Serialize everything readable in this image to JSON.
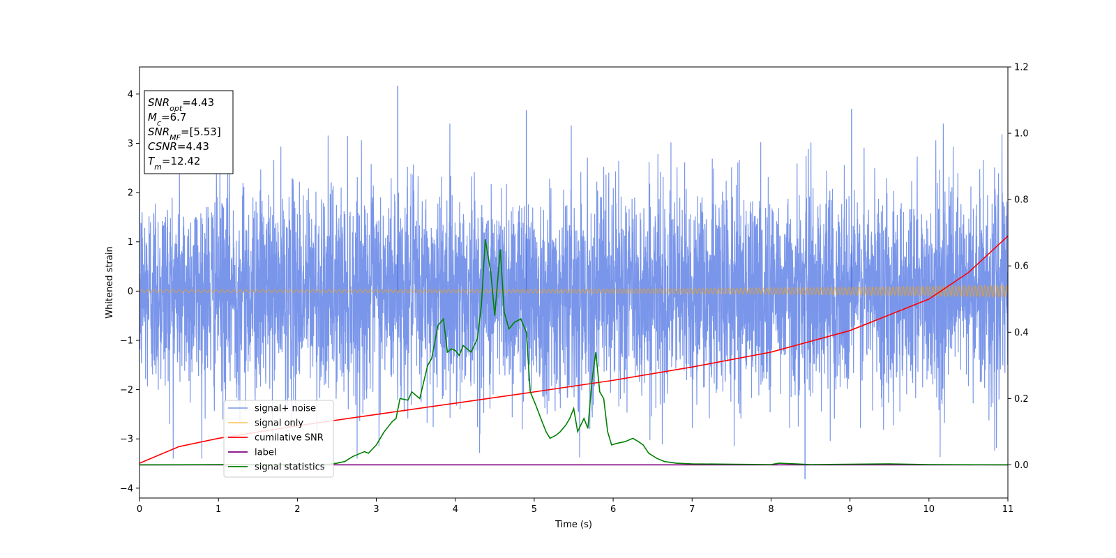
{
  "chart_data": {
    "type": "line",
    "xlabel": "Time (s)",
    "ylabel": "Whitened strain",
    "xlim": [
      0,
      11
    ],
    "ylim": [
      -4.2,
      4.55
    ],
    "y2lim": [
      -0.1,
      1.2
    ],
    "x_ticks": [
      "0",
      "1",
      "2",
      "3",
      "4",
      "5",
      "6",
      "7",
      "8",
      "9",
      "10",
      "11"
    ],
    "y_ticks": [
      "−4",
      "−3",
      "−2",
      "−1",
      "0",
      "1",
      "2",
      "3",
      "4"
    ],
    "y2_ticks": [
      "0.0",
      "0.2",
      "0.4",
      "0.6",
      "0.8",
      "1.0",
      "1.2"
    ],
    "grid": false,
    "legend_position": "lower-left",
    "legend": [
      {
        "label": "signal+ noise",
        "color": "#4169e1"
      },
      {
        "label": "signal only",
        "color": "#ffa500"
      },
      {
        "label": "cumilative SNR",
        "color": "#ff0000"
      },
      {
        "label": "label",
        "color": "#800080"
      },
      {
        "label": "signal statistics",
        "color": "#008000"
      }
    ],
    "info_box": [
      {
        "sym": "SNR",
        "sub": "opt",
        "val": "=4.43"
      },
      {
        "sym": "M",
        "sub": "c",
        "val": "=6.7"
      },
      {
        "sym": "SNR",
        "sub": "MF",
        "val": "=[5.53]"
      },
      {
        "sym": "CSNR",
        "sub": "",
        "val": "=4.43"
      },
      {
        "sym": "T",
        "sub": "m",
        "val": "=12.42"
      }
    ],
    "series": [
      {
        "name": "signal+ noise",
        "axis": "left",
        "color": "#4169e1",
        "description_samples": "whitened noise, std ~1.1, peaks ~±3.5",
        "x_range": [
          0,
          11
        ],
        "notable_peaks": [
          [
            3.27,
            4.17
          ],
          [
            4.9,
            3.67
          ],
          [
            9.02,
            3.7
          ],
          [
            8.43,
            -3.82
          ]
        ]
      },
      {
        "name": "signal only",
        "axis": "left",
        "color": "#ffa500",
        "x_range": [
          0,
          11
        ],
        "amplitude_start": 0.03,
        "amplitude_end": 0.12
      },
      {
        "name": "cumilative SNR",
        "axis": "right",
        "color": "#ff0000",
        "x": [
          0,
          0.5,
          1,
          2,
          3,
          4,
          5,
          6,
          7,
          8,
          9,
          10,
          10.5,
          11
        ],
        "y": [
          0.005,
          0.055,
          0.08,
          0.118,
          0.152,
          0.186,
          0.22,
          0.255,
          0.295,
          0.34,
          0.405,
          0.5,
          0.58,
          0.69
        ]
      },
      {
        "name": "label",
        "axis": "right",
        "color": "#800080",
        "x": [
          0,
          11
        ],
        "y": [
          0,
          0
        ]
      },
      {
        "name": "signal statistics",
        "axis": "right",
        "color": "#008000",
        "x": [
          0,
          2.4,
          2.5,
          2.6,
          2.7,
          2.8,
          2.85,
          2.9,
          3.0,
          3.1,
          3.2,
          3.25,
          3.3,
          3.4,
          3.45,
          3.55,
          3.65,
          3.7,
          3.78,
          3.85,
          3.9,
          3.95,
          4.0,
          4.05,
          4.1,
          4.15,
          4.2,
          4.28,
          4.33,
          4.38,
          4.45,
          4.5,
          4.57,
          4.62,
          4.68,
          4.75,
          4.83,
          4.9,
          4.95,
          5.02,
          5.1,
          5.15,
          5.2,
          5.28,
          5.33,
          5.4,
          5.45,
          5.5,
          5.55,
          5.63,
          5.68,
          5.73,
          5.78,
          5.83,
          5.88,
          5.93,
          5.98,
          6.05,
          6.15,
          6.25,
          6.32,
          6.38,
          6.45,
          6.55,
          6.65,
          6.8,
          7.0,
          7.5,
          8.0,
          8.1,
          8.5,
          9.0,
          9.5,
          10.0,
          11
        ],
        "y": [
          0.0,
          0.002,
          0.005,
          0.01,
          0.025,
          0.035,
          0.04,
          0.035,
          0.06,
          0.1,
          0.13,
          0.14,
          0.2,
          0.195,
          0.22,
          0.2,
          0.3,
          0.32,
          0.42,
          0.44,
          0.34,
          0.35,
          0.345,
          0.33,
          0.36,
          0.35,
          0.34,
          0.38,
          0.48,
          0.68,
          0.58,
          0.45,
          0.65,
          0.46,
          0.41,
          0.43,
          0.44,
          0.4,
          0.22,
          0.18,
          0.13,
          0.1,
          0.08,
          0.09,
          0.1,
          0.12,
          0.14,
          0.17,
          0.1,
          0.14,
          0.11,
          0.25,
          0.34,
          0.22,
          0.2,
          0.1,
          0.06,
          0.065,
          0.07,
          0.08,
          0.07,
          0.06,
          0.035,
          0.02,
          0.01,
          0.005,
          0.003,
          0.002,
          0.001,
          0.005,
          0.001,
          0.002,
          0.003,
          0.001,
          0.0
        ]
      }
    ]
  }
}
